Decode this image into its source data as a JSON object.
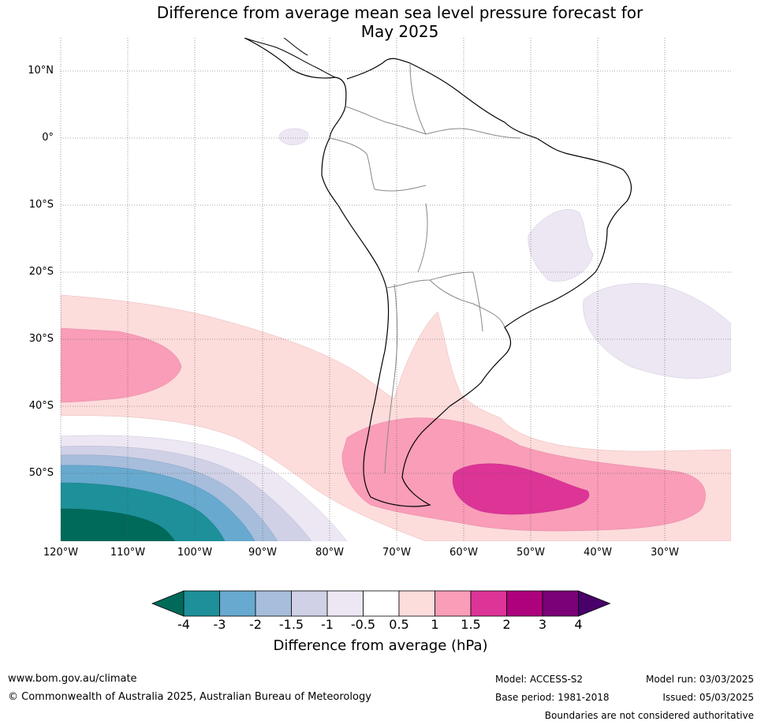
{
  "title": {
    "line1": "Difference from average mean sea level pressure forecast for",
    "line2": "May 2025"
  },
  "map": {
    "latitude_labels": [
      "10°N",
      "0°",
      "10°S",
      "20°S",
      "30°S",
      "40°S",
      "50°S"
    ],
    "longitude_labels": [
      "120°W",
      "110°W",
      "100°W",
      "90°W",
      "80°W",
      "70°W",
      "60°W",
      "50°W",
      "40°W",
      "30°W"
    ],
    "grid": "dotted"
  },
  "colorbar": {
    "ticks": [
      "-4",
      "-3",
      "-2",
      "-1.5",
      "-1",
      "-0.5",
      "0.5",
      "1",
      "1.5",
      "2",
      "3",
      "4"
    ],
    "colors": [
      "#006a5a",
      "#1d9099",
      "#67a9cf",
      "#a6bddb",
      "#d0d1e6",
      "#ece7f2",
      "#ffffff",
      "#fddcdc",
      "#f99db8",
      "#dd3497",
      "#ae017e",
      "#7a0177",
      "#49006a"
    ],
    "label": "Difference from average (hPa)"
  },
  "footer": {
    "website": "www.bom.gov.au/climate",
    "copyright": "© Commonwealth of Australia 2025, Australian Bureau of Meteorology",
    "model": "Model: ACCESS-S2",
    "base_period": "Base period: 1981-2018",
    "model_run": "Model run: 03/03/2025",
    "issued": "Issued: 05/03/2025",
    "disclaimer": "Boundaries are not considered authoritative"
  }
}
